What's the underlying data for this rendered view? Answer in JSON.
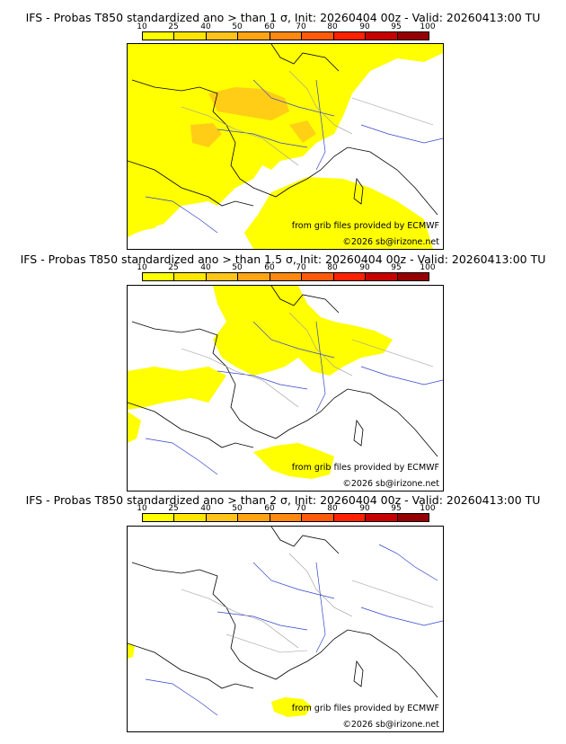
{
  "colorbar": {
    "ticks": [
      "10",
      "25",
      "40",
      "50",
      "60",
      "70",
      "80",
      "90",
      "95",
      "100"
    ],
    "colors": [
      "#ffff00",
      "#ffe600",
      "#ffc419",
      "#ffa514",
      "#ff8810",
      "#ff5a0a",
      "#ff2200",
      "#c80000",
      "#960000",
      "#5a0000"
    ]
  },
  "panels": [
    {
      "title": "IFS - Probas T850  standardized ano > than 1 σ, Init: 20260404 00z - Valid: 20260413:00 TU",
      "credit1": "from grib files provided by ECMWF",
      "credit2": "©2026 sb@irizone.net",
      "coverage": "high"
    },
    {
      "title": "IFS - Probas T850  standardized ano > than 1.5 σ, Init: 20260404 00z - Valid: 20260413:00 TU",
      "credit1": "from grib files provided by ECMWF",
      "credit2": "©2026 sb@irizone.net",
      "coverage": "medium"
    },
    {
      "title": "IFS - Probas T850  standardized ano > than 2 σ, Init: 20260404 00z - Valid: 20260413:00 TU",
      "credit1": "from grib files provided by ECMWF",
      "credit2": "©2026 sb@irizone.net",
      "coverage": "low"
    }
  ]
}
